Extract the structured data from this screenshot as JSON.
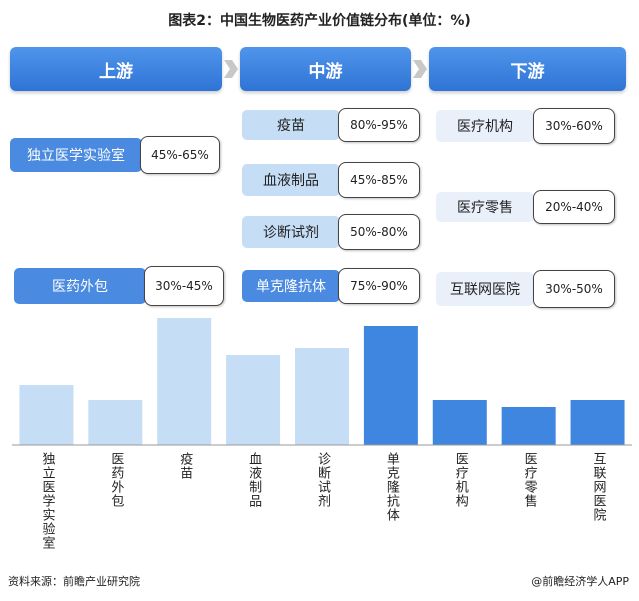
{
  "chart_data": {
    "type": "bar",
    "title": "图表2：中国生物医药产业价值链分布(单位：%)",
    "stages": [
      {
        "name": "上游",
        "items": [
          {
            "label": "独立医学实验室",
            "range": "45%-65%"
          },
          {
            "label": "医药外包",
            "range": "30%-45%"
          }
        ]
      },
      {
        "name": "中游",
        "items": [
          {
            "label": "疫苗",
            "range": "80%-95%"
          },
          {
            "label": "血液制品",
            "range": "45%-85%"
          },
          {
            "label": "诊断试剂",
            "range": "50%-80%"
          },
          {
            "label": "单克隆抗体",
            "range": "75%-90%"
          }
        ]
      },
      {
        "name": "下游",
        "items": [
          {
            "label": "医疗机构",
            "range": "30%-60%"
          },
          {
            "label": "医疗零售",
            "range": "20%-40%"
          },
          {
            "label": "互联网医院",
            "range": "30%-50%"
          }
        ]
      }
    ],
    "categories": [
      "独立医学实验室",
      "医药外包",
      "疫苗",
      "血液制品",
      "诊断试剂",
      "单克隆抗体",
      "医疗机构",
      "医疗零售",
      "互联网医院"
    ],
    "values": [
      60,
      45,
      127,
      90,
      97,
      119,
      45,
      38,
      45
    ],
    "colors": [
      "#c6ddf6",
      "#c6ddf6",
      "#c6ddf6",
      "#c6ddf6",
      "#c6ddf6",
      "#3f86e0",
      "#3f86e0",
      "#3f86e0",
      "#3f86e0"
    ],
    "ylim": [
      0,
      140
    ],
    "source": "资料来源：前瞻产业研究院",
    "credit": "@前瞻经济学人APP"
  }
}
